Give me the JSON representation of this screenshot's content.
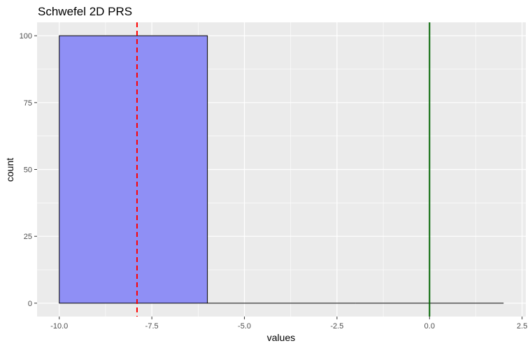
{
  "chart_data": {
    "type": "bar",
    "title": "Schwefel 2D PRS",
    "xlabel": "values",
    "ylabel": "count",
    "xlim": [
      -10.6,
      2.6
    ],
    "ylim": [
      -5,
      105
    ],
    "x_ticks": [
      -10.0,
      -7.5,
      -5.0,
      -2.5,
      0.0,
      2.5
    ],
    "x_tick_labels": [
      "-10.0",
      "-7.5",
      "-5.0",
      "-2.5",
      "0.0",
      "2.5"
    ],
    "y_ticks": [
      0,
      25,
      50,
      75,
      100
    ],
    "y_tick_labels": [
      "0",
      "25",
      "50",
      "75",
      "100"
    ],
    "bins": [
      {
        "x0": -10.0,
        "x1": -6.0,
        "count": 100
      },
      {
        "x0": -6.0,
        "x1": -2.0,
        "count": 0
      },
      {
        "x0": -2.0,
        "x1": 2.0,
        "count": 0
      }
    ],
    "reference_lines": [
      {
        "x": -7.9,
        "style": "dashed",
        "color": "#ff0000"
      },
      {
        "x": 0.0,
        "style": "solid",
        "color": "#006400"
      }
    ],
    "grid": true,
    "colors": {
      "panel_background": "#ebebeb",
      "grid": "#ffffff",
      "bar_fill": "#8f8ff5",
      "bar_stroke": "#000000"
    }
  }
}
